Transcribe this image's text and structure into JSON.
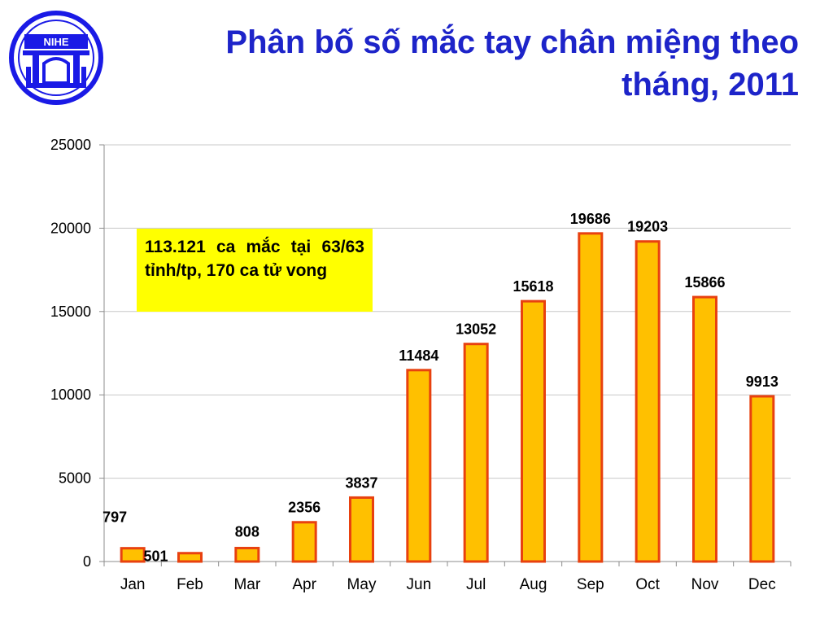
{
  "header": {
    "title": "Phân bố số mắc tay chân miệng theo tháng, 2011",
    "logo_text": "NIHE"
  },
  "callout": {
    "text": "113.121 ca mắc tại 63/63 tỉnh/tp, 170 ca tử vong"
  },
  "colors": {
    "title": "#1d24c9",
    "bar_fill": "#ffc000",
    "bar_stroke": "#e8410f",
    "callout_bg": "#ffff00",
    "logo": "#1a1ae6"
  },
  "chart_data": {
    "type": "bar",
    "categories": [
      "Jan",
      "Feb",
      "Mar",
      "Apr",
      "May",
      "Jun",
      "Jul",
      "Aug",
      "Sep",
      "Oct",
      "Nov",
      "Dec"
    ],
    "values": [
      797,
      501,
      808,
      2356,
      3837,
      11484,
      13052,
      15618,
      19686,
      19203,
      15866,
      9913
    ],
    "ylim": [
      0,
      25000
    ],
    "yticks": [
      0,
      5000,
      10000,
      15000,
      20000,
      25000
    ],
    "grid": true,
    "legend": "none"
  }
}
